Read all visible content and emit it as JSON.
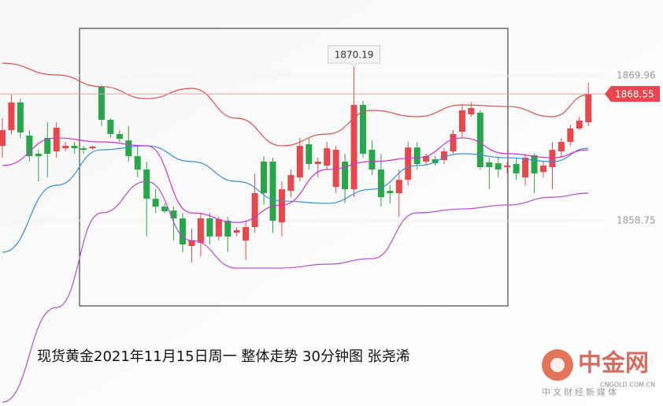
{
  "chart_data": {
    "type": "candlestick",
    "caption": "现货黄金2021年11月15日周一  整体走势  30分钟图  张尧浠",
    "ylim": [
      1844.43,
      1875.81
    ],
    "yticks": [
      1869.96,
      1858.75
    ],
    "last_price": 1868.55,
    "high_label": 1870.19,
    "up_color": "#e8474d",
    "down_color": "#27a74a",
    "open": [
      1864.54,
      1865.75,
      1867.89,
      1865.33,
      1863.93,
      1865.15,
      1864.11,
      1864.35,
      1864.54,
      1864.35,
      1864.35,
      1869.11,
      1866.55,
      1865.45,
      1864.96,
      1863.74,
      1862.71,
      1860.45,
      1859.84,
      1859.54,
      1858.93,
      1856.8,
      1857.04,
      1858.93,
      1857.53,
      1858.75,
      1857.83,
      1857.22,
      1858.26,
      1863.32,
      1863.32,
      1858.62,
      1861.06,
      1862.1,
      1864.66,
      1863.13,
      1863.01,
      1861.37,
      1863.32,
      1861.18,
      1867.7,
      1864.23,
      1862.71,
      1861.06,
      1860.88,
      1861.91,
      1864.41,
      1863.32,
      1863.5,
      1863.44,
      1864.11,
      1865.63,
      1866.97,
      1867.1,
      1863.26,
      1863.19,
      1862.89,
      1863.13,
      1862.1,
      1863.81,
      1862.52,
      1862.89,
      1864.11,
      1864.84,
      1865.88,
      1866.36
    ],
    "high": [
      1866.67,
      1868.5,
      1868.19,
      1865.75,
      1864.23,
      1866.36,
      1866.36,
      1864.84,
      1864.84,
      1864.54,
      1864.54,
      1869.23,
      1866.67,
      1865.75,
      1866.06,
      1864.54,
      1863.32,
      1861.18,
      1860.09,
      1859.84,
      1859.36,
      1858.14,
      1859.36,
      1859.36,
      1859.05,
      1859.05,
      1858.26,
      1858.75,
      1862.4,
      1863.74,
      1863.62,
      1861.79,
      1862.71,
      1865.15,
      1865.15,
      1863.62,
      1864.84,
      1864.54,
      1863.93,
      1870.19,
      1868.01,
      1864.96,
      1863.93,
      1861.49,
      1862.71,
      1864.84,
      1864.84,
      1863.93,
      1863.74,
      1864.35,
      1865.75,
      1867.7,
      1867.89,
      1867.28,
      1863.62,
      1863.62,
      1863.32,
      1863.62,
      1863.93,
      1863.93,
      1863.32,
      1864.84,
      1865.15,
      1866.18,
      1866.79,
      1869.41
    ],
    "low": [
      1863.62,
      1865.45,
      1865.15,
      1863.32,
      1861.79,
      1862.1,
      1863.62,
      1864.11,
      1863.93,
      1863.93,
      1864.23,
      1866.06,
      1865.15,
      1864.84,
      1863.32,
      1862.1,
      1857.53,
      1859.36,
      1859.36,
      1857.22,
      1856.31,
      1855.52,
      1856.0,
      1856.92,
      1857.22,
      1856.31,
      1857.53,
      1855.7,
      1857.83,
      1859.97,
      1857.83,
      1857.53,
      1860.57,
      1861.79,
      1862.71,
      1862.1,
      1862.71,
      1860.88,
      1860.09,
      1860.57,
      1863.62,
      1862.28,
      1859.84,
      1860.09,
      1859.05,
      1861.49,
      1862.71,
      1863.01,
      1863.01,
      1863.13,
      1863.93,
      1865.15,
      1866.79,
      1862.71,
      1861.18,
      1862.1,
      1862.4,
      1861.91,
      1861.49,
      1860.88,
      1862.1,
      1861.18,
      1863.62,
      1864.54,
      1865.75,
      1866.06
    ],
    "close": [
      1865.75,
      1867.89,
      1865.57,
      1863.74,
      1863.74,
      1863.93,
      1865.94,
      1864.54,
      1864.35,
      1864.23,
      1864.48,
      1866.55,
      1865.45,
      1865.08,
      1863.74,
      1862.71,
      1860.45,
      1859.84,
      1859.48,
      1858.93,
      1856.92,
      1857.22,
      1858.93,
      1857.53,
      1858.87,
      1857.53,
      1858.02,
      1858.26,
      1860.88,
      1860.88,
      1858.75,
      1861.18,
      1862.28,
      1864.54,
      1863.13,
      1863.32,
      1864.35,
      1864.23,
      1861.18,
      1867.7,
      1863.93,
      1862.71,
      1860.57,
      1860.88,
      1861.91,
      1864.41,
      1863.13,
      1863.74,
      1863.19,
      1864.11,
      1865.45,
      1867.28,
      1867.46,
      1862.89,
      1862.89,
      1862.71,
      1863.01,
      1862.4,
      1863.62,
      1862.4,
      1863.01,
      1864.23,
      1864.84,
      1865.88,
      1866.49,
      1868.55
    ],
    "lines": [
      {
        "color": "#d9534f",
        "x": [
          0,
          6,
          11,
          16,
          21,
          26,
          31,
          36,
          41,
          46,
          51,
          56,
          61,
          65
        ],
        "values": [
          1870.93,
          1870.02,
          1869.11,
          1868.19,
          1868.98,
          1866.67,
          1864.54,
          1865.45,
          1867.28,
          1866.79,
          1867.7,
          1867.58,
          1866.79,
          1868.5
        ]
      },
      {
        "color": "#b44bd6",
        "x": [
          0,
          6,
          11,
          16,
          21,
          26,
          31,
          36,
          41,
          46,
          51,
          56,
          61,
          65
        ],
        "values": [
          1844.73,
          1852.04,
          1859.36,
          1861.79,
          1857.22,
          1855.09,
          1855.09,
          1855.39,
          1855.82,
          1859.36,
          1859.66,
          1859.97,
          1860.57,
          1860.88
        ]
      },
      {
        "color": "#3a8fd9",
        "x": [
          0,
          6,
          11,
          16,
          21,
          26,
          31,
          36,
          41,
          46,
          51,
          56,
          61,
          65
        ],
        "values": [
          1856.31,
          1861.49,
          1864.23,
          1864.54,
          1863.32,
          1861.79,
          1860.27,
          1860.09,
          1861.18,
          1863.01,
          1863.93,
          1863.62,
          1863.32,
          1864.35
        ]
      },
      {
        "color": "#cc33cc",
        "x": [
          0,
          6,
          11,
          16,
          21,
          26,
          31,
          36,
          41,
          46,
          51,
          56,
          61,
          65
        ],
        "values": [
          1863.01,
          1865.15,
          1864.84,
          1864.54,
          1859.36,
          1858.62,
          1859.97,
          1862.71,
          1863.32,
          1863.62,
          1865.15,
          1863.93,
          1863.62,
          1864.23
        ]
      }
    ],
    "watermark": {
      "logo": "中金网",
      "domain": "CNGOLD.COM.CN",
      "slogan": "中文财经新媒体"
    }
  }
}
